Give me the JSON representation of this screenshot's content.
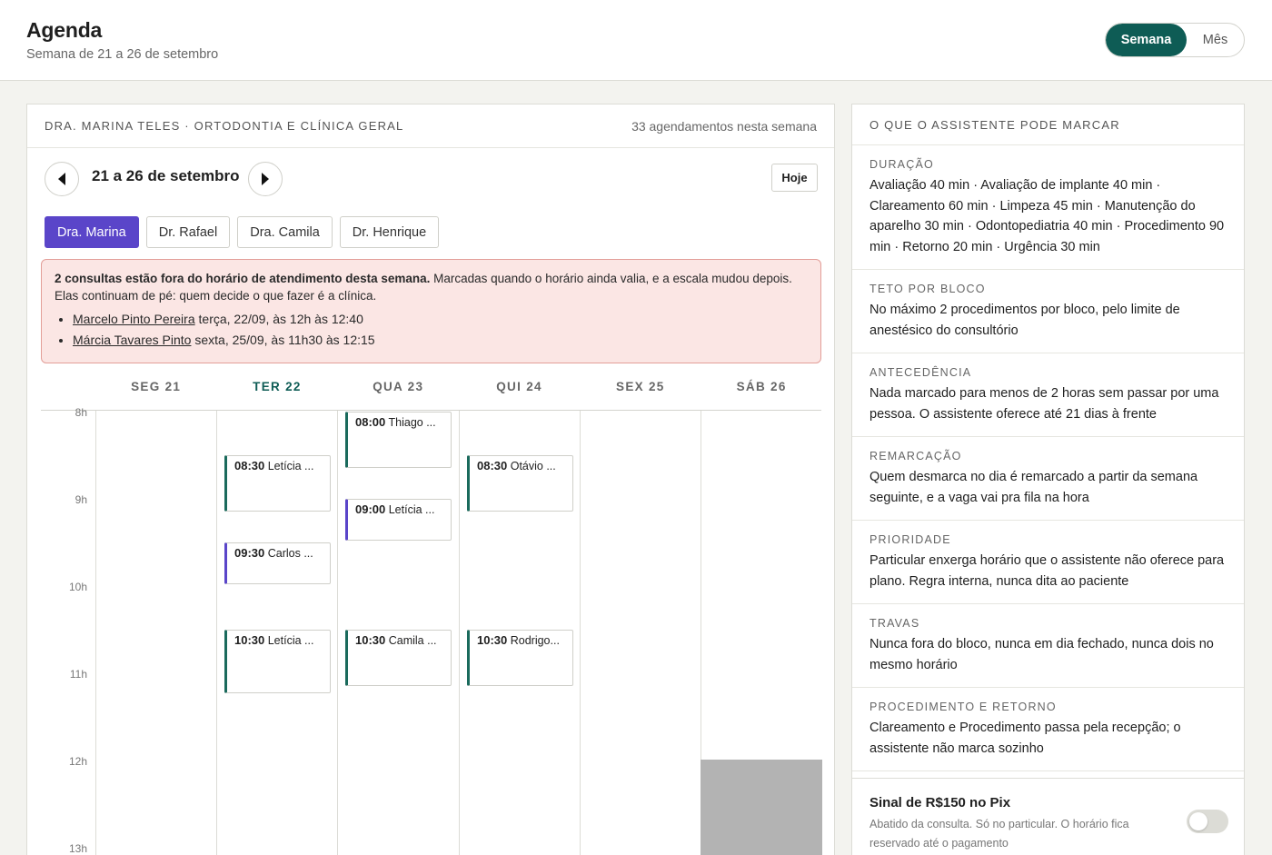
{
  "header": {
    "title": "Agenda",
    "subtitle": "Semana de 21 a 26 de setembro",
    "view_week": "Semana",
    "view_month": "Mês"
  },
  "calendar": {
    "doctor_heading": "DRA. MARINA TELES · ORTODONTIA E CLÍNICA GERAL",
    "count_text": "33 agendamentos nesta semana",
    "range": "21 a 26 de setembro",
    "today_label": "Hoje",
    "doctors": [
      {
        "label": "Dra. Marina"
      },
      {
        "label": "Dr. Rafael"
      },
      {
        "label": "Dra. Camila"
      },
      {
        "label": "Dr. Henrique"
      }
    ],
    "alert": {
      "bold": "2 consultas estão fora do horário de atendimento desta semana.",
      "text": " Marcadas quando o horário ainda valia, e a escala mudou depois. Elas continuam de pé: quem decide o que fazer é a clínica.",
      "items": [
        {
          "name": "Marcelo Pinto Pereira",
          "when": " terça, 22/09, às 12h às 12:40"
        },
        {
          "name": "Márcia Tavares Pinto",
          "when": " sexta, 25/09, às 11h30 às 12:15"
        }
      ]
    },
    "days": [
      "SEG 21",
      "TER 22",
      "QUA 23",
      "QUI 24",
      "SEX 25",
      "SÁB 26"
    ],
    "hours": [
      "8h",
      "9h",
      "10h",
      "11h",
      "12h",
      "13h"
    ],
    "appointments": [
      {
        "time": "08:30",
        "name": "Letícia ..."
      },
      {
        "time": "09:30",
        "name": "Carlos ..."
      },
      {
        "time": "10:30",
        "name": "Letícia ..."
      },
      {
        "time": "08:00",
        "name": "Thiago ..."
      },
      {
        "time": "09:00",
        "name": "Letícia ..."
      },
      {
        "time": "10:30",
        "name": "Camila ..."
      },
      {
        "time": "08:30",
        "name": "Otávio ..."
      },
      {
        "time": "10:30",
        "name": "Rodrigo..."
      }
    ],
    "colors": {
      "accent": "#0e5c55",
      "violet": "#5a45c9",
      "alert_bg": "#fbe6e4"
    }
  },
  "sidebar": {
    "heading": "O QUE O ASSISTENTE PODE MARCAR",
    "rules": [
      {
        "label": "DURAÇÃO",
        "text": "Avaliação 40 min · Avaliação de implante 40 min · Clareamento 60 min · Limpeza 45 min · Manutenção do aparelho 30 min · Odontopediatria 40 min · Procedimento 90 min · Retorno 20 min · Urgência 30 min"
      },
      {
        "label": "TETO POR BLOCO",
        "text": "No máximo 2 procedimentos por bloco, pelo limite de anestésico do consultório"
      },
      {
        "label": "ANTECEDÊNCIA",
        "text": "Nada marcado para menos de 2 horas sem passar por uma pessoa. O assistente oferece até 21 dias à frente"
      },
      {
        "label": "REMARCAÇÃO",
        "text": "Quem desmarca no dia é remarcado a partir da semana seguinte, e a vaga vai pra fila na hora"
      },
      {
        "label": "PRIORIDADE",
        "text": "Particular enxerga horário que o assistente não oferece para plano. Regra interna, nunca dita ao paciente"
      },
      {
        "label": "TRAVAS",
        "text": "Nunca fora do bloco, nunca em dia fechado, nunca dois no mesmo horário"
      },
      {
        "label": "PROCEDIMENTO E RETORNO",
        "text": "Clareamento e Procedimento passa pela recepção; o assistente não marca sozinho"
      }
    ],
    "sinal": {
      "title": "Sinal de R$150 no Pix",
      "desc": "Abatido da consulta. Só no particular. O horário fica reservado até o pagamento",
      "enabled": false
    }
  }
}
